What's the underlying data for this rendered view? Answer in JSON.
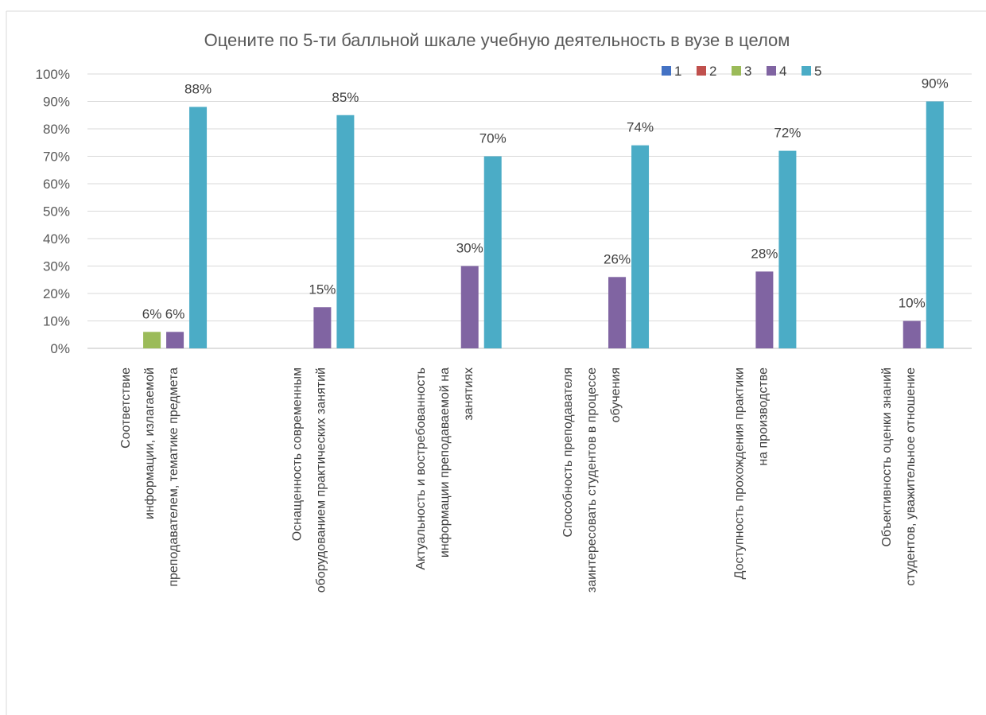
{
  "chart_data": {
    "type": "bar",
    "title": "Оцените по 5-ти балльной шкале учебную деятельность в вузе в целом",
    "xlabel": "",
    "ylabel": "",
    "ylim": [
      0,
      100
    ],
    "yticks": [
      "0%",
      "10%",
      "20%",
      "30%",
      "40%",
      "50%",
      "60%",
      "70%",
      "80%",
      "90%",
      "100%"
    ],
    "grid": true,
    "legend_position": "top-right",
    "categories": [
      [
        "Соответствие",
        "информации, излагаемой",
        "преподавателем, тематике предмета"
      ],
      [
        "Оснащенность современным",
        "оборудованием практических занятий"
      ],
      [
        "Актуальность и востребованность",
        "информации преподаваемой на",
        "занятиях"
      ],
      [
        "Способность преподавателя",
        "заинтересовать студентов в процессе",
        "обучения"
      ],
      [
        "Доступность прохождения практики",
        "на производстве"
      ],
      [
        "Объективность оценки знаний",
        "студентов, уважительное отношение"
      ]
    ],
    "series": [
      {
        "name": "1",
        "color": "#4472c4",
        "values": [
          0,
          0,
          0,
          0,
          0,
          0
        ],
        "labels": [
          "",
          "",
          "",
          "",
          "",
          ""
        ]
      },
      {
        "name": "2",
        "color": "#c0504d",
        "values": [
          0,
          0,
          0,
          0,
          0,
          0
        ],
        "labels": [
          "",
          "",
          "",
          "",
          "",
          ""
        ]
      },
      {
        "name": "3",
        "color": "#9bbb59",
        "values": [
          6,
          0,
          0,
          0,
          0,
          0
        ],
        "labels": [
          "6%",
          "",
          "",
          "",
          "",
          ""
        ]
      },
      {
        "name": "4",
        "color": "#8064a2",
        "values": [
          6,
          15,
          30,
          26,
          28,
          10
        ],
        "labels": [
          "6%",
          "15%",
          "30%",
          "26%",
          "28%",
          "10%"
        ]
      },
      {
        "name": "5",
        "color": "#4bacc6",
        "values": [
          88,
          85,
          70,
          74,
          72,
          90
        ],
        "labels": [
          "88%",
          "85%",
          "70%",
          "74%",
          "72%",
          "90%"
        ]
      }
    ]
  }
}
